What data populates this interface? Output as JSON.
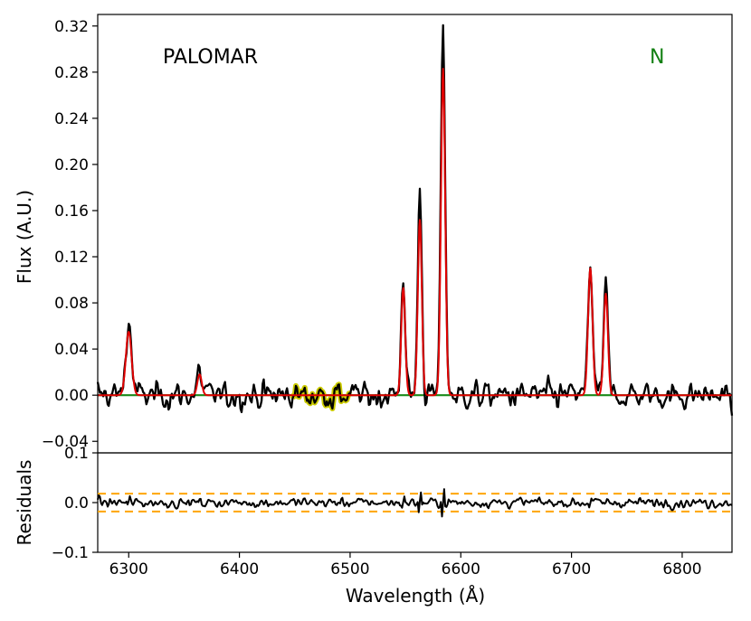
{
  "chart_data": [
    {
      "type": "line",
      "panel": "spectrum",
      "annotations": {
        "left": "PALOMAR",
        "right": "N"
      },
      "xlabel": "",
      "ylabel": "Flux (A.U.)",
      "xlim": [
        6272,
        6845
      ],
      "ylim": [
        -0.05,
        0.33
      ],
      "yticks": [
        "−0.04",
        "0.00",
        "0.04",
        "0.08",
        "0.12",
        "0.16",
        "0.20",
        "0.24",
        "0.28",
        "0.32"
      ],
      "ytick_values": [
        -0.04,
        0.0,
        0.04,
        0.08,
        0.12,
        0.16,
        0.2,
        0.24,
        0.28,
        0.32
      ],
      "grid": false,
      "lines": [
        {
          "center": 6300,
          "sigma": 2.6,
          "observed_peak": 0.062,
          "model_peak": 0.055
        },
        {
          "center": 6364,
          "sigma": 2.0,
          "observed_peak": 0.02,
          "model_peak": 0.018
        },
        {
          "center": 6548,
          "sigma": 1.8,
          "observed_peak": 0.105,
          "model_peak": 0.093
        },
        {
          "center": 6563,
          "sigma": 1.8,
          "observed_peak": 0.182,
          "model_peak": 0.152
        },
        {
          "center": 6584,
          "sigma": 1.9,
          "observed_peak": 0.324,
          "model_peak": 0.283
        },
        {
          "center": 6717,
          "sigma": 2.0,
          "observed_peak": 0.117,
          "model_peak": 0.11
        },
        {
          "center": 6731,
          "sigma": 1.9,
          "observed_peak": 0.093,
          "model_peak": 0.088
        }
      ],
      "noise_rms": 0.01,
      "masked_region": [
        6448,
        6500
      ],
      "series": [],
      "colors": {
        "data": "#000000",
        "model": "#e00000",
        "continuum": "#1a8a1a",
        "masked": "#cccc00",
        "annotation_right": "#138013"
      }
    },
    {
      "type": "line",
      "panel": "residuals",
      "xlabel": "Wavelength (Å)",
      "ylabel": "Residuals",
      "xlim": [
        6272,
        6845
      ],
      "ylim": [
        -0.1,
        0.1
      ],
      "xticks": [
        "6300",
        "6400",
        "6500",
        "6600",
        "6700",
        "6800"
      ],
      "xtick_values": [
        6300,
        6400,
        6500,
        6600,
        6700,
        6800
      ],
      "yticks": [
        "−0.1",
        "0.0",
        "0.1"
      ],
      "ytick_values": [
        -0.1,
        0.0,
        0.1
      ],
      "threshold_lines": [
        0.018,
        -0.018
      ],
      "noise_rms": 0.009,
      "grid": false,
      "colors": {
        "residual": "#000000",
        "threshold": "#ffa500"
      }
    }
  ]
}
